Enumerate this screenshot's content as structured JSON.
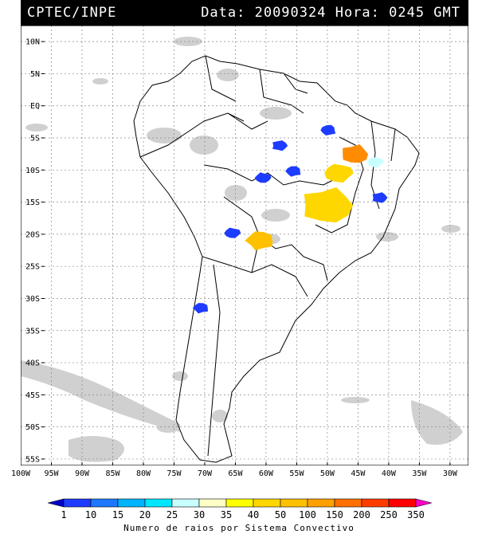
{
  "header": {
    "source": "CPTEC/INPE",
    "datetime": "Data: 20090324 Hora: 0245 GMT"
  },
  "map": {
    "lat_labels": [
      "10N",
      "5N",
      "EQ",
      "5S",
      "10S",
      "15S",
      "20S",
      "25S",
      "30S",
      "35S",
      "40S",
      "45S",
      "50S",
      "55S"
    ],
    "lon_labels": [
      "100W",
      "95W",
      "90W",
      "85W",
      "80W",
      "75W",
      "70W",
      "65W",
      "60W",
      "55W",
      "50W",
      "45W",
      "40W",
      "35W",
      "30W"
    ],
    "lat_values": [
      10,
      5,
      0,
      -5,
      -10,
      -15,
      -20,
      -25,
      -30,
      -35,
      -40,
      -45,
      -50,
      -55
    ],
    "lon_values": [
      -100,
      -95,
      -90,
      -85,
      -80,
      -75,
      -70,
      -65,
      -60,
      -55,
      -50,
      -45,
      -40,
      -35,
      -30
    ],
    "extent": {
      "lon_min": -100,
      "lon_max": -27,
      "lat_min": -56,
      "lat_max": 12.5
    },
    "convective_systems": [
      {
        "lon": -49.8,
        "lat": -3.8,
        "count_class": "10",
        "color": "#1e3cff"
      },
      {
        "lon": -57.8,
        "lat": -6.2,
        "count_class": "10",
        "color": "#1e3cff"
      },
      {
        "lon": -60.5,
        "lat": -11.2,
        "count_class": "10",
        "color": "#1e3cff"
      },
      {
        "lon": -55.5,
        "lat": -10.2,
        "count_class": "10",
        "color": "#1e3cff"
      },
      {
        "lon": -41.5,
        "lat": -14.3,
        "count_class": "10",
        "color": "#1e3cff"
      },
      {
        "lon": -65.5,
        "lat": -19.8,
        "count_class": "1",
        "color": "#1e3cff"
      },
      {
        "lon": -70.6,
        "lat": -31.5,
        "count_class": "10",
        "color": "#1e3cff"
      },
      {
        "lon": -50.0,
        "lat": -15.5,
        "count_class": "40",
        "color": "#ffd700"
      },
      {
        "lon": -48.2,
        "lat": -10.5,
        "count_class": "40",
        "color": "#ffd700"
      },
      {
        "lon": -61.0,
        "lat": -21.0,
        "count_class": "50",
        "color": "#ffc000"
      },
      {
        "lon": -45.5,
        "lat": -7.5,
        "count_class": "150",
        "color": "#ff8c00"
      },
      {
        "lon": -42.2,
        "lat": -8.8,
        "count_class": "25",
        "color": "#c8ffff"
      }
    ]
  },
  "colorbar": {
    "labels": [
      "1",
      "10",
      "15",
      "20",
      "25",
      "30",
      "35",
      "40",
      "50",
      "100",
      "150",
      "200",
      "250",
      "350"
    ],
    "colors": [
      "#0000c8",
      "#1e3cff",
      "#1e78ff",
      "#00b4ff",
      "#00e6ff",
      "#c8ffff",
      "#ffffc8",
      "#ffff00",
      "#ffd700",
      "#ffc000",
      "#ffa000",
      "#ff7000",
      "#ff3c00",
      "#ff0000",
      "#ff00c8"
    ],
    "caption": "Numero de raios por Sistema Convectivo"
  }
}
